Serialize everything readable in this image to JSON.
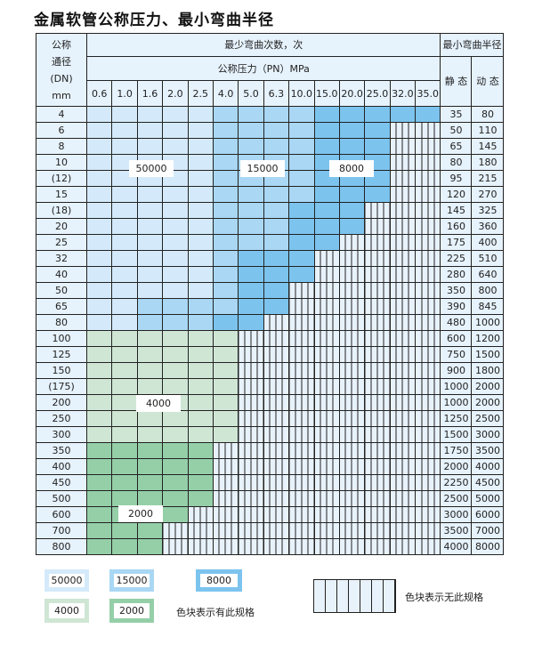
{
  "title": "金属软管公称压力、最小弯曲半径",
  "header": {
    "dn_label": [
      "公称",
      "通径",
      "(DN)",
      "mm"
    ],
    "bend_count_label": "最少弯曲次数，次",
    "pressure_label": "公称压力（PN）MPa",
    "radius_label": "最小弯曲半径",
    "static_label": "静 态",
    "dynamic_label": "动 态",
    "pressures": [
      "0.6",
      "1.0",
      "1.6",
      "2.0",
      "2.5",
      "4.0",
      "5.0",
      "6.3",
      "10.0",
      "15.0",
      "20.0",
      "25.0",
      "32.0",
      "35.0"
    ]
  },
  "rows": [
    {
      "dn": "4",
      "static": "35",
      "dynamic": "80",
      "cells": "LLLLLMMMMDDDDD"
    },
    {
      "dn": "6",
      "static": "50",
      "dynamic": "110",
      "cells": "LLLLLMMMMDDDXX"
    },
    {
      "dn": "8",
      "static": "65",
      "dynamic": "145",
      "cells": "LLLLLMMMMDDDXX"
    },
    {
      "dn": "10",
      "static": "80",
      "dynamic": "180",
      "cells": "LLLLLMMMMDDDXX"
    },
    {
      "dn": "(12)",
      "static": "95",
      "dynamic": "215",
      "cells": "LLLLLMMMMDDDXX"
    },
    {
      "dn": "15",
      "static": "120",
      "dynamic": "270",
      "cells": "LLLLLMMMMDDDXX"
    },
    {
      "dn": "(18)",
      "static": "145",
      "dynamic": "325",
      "cells": "LLLLLMMMDDDXXX"
    },
    {
      "dn": "20",
      "static": "160",
      "dynamic": "360",
      "cells": "LLLLLMMMDDDXXX"
    },
    {
      "dn": "25",
      "static": "175",
      "dynamic": "400",
      "cells": "LLLLLMMMDDXXXX"
    },
    {
      "dn": "32",
      "static": "225",
      "dynamic": "510",
      "cells": "LLLLLMDDDXXXXX"
    },
    {
      "dn": "40",
      "static": "280",
      "dynamic": "640",
      "cells": "LLLLLMDDDXXXXX"
    },
    {
      "dn": "50",
      "static": "350",
      "dynamic": "800",
      "cells": "LLLLLMDDXXXXXX"
    },
    {
      "dn": "65",
      "static": "390",
      "dynamic": "845",
      "cells": "LLMMMMDDXXXXXX"
    },
    {
      "dn": "80",
      "static": "480",
      "dynamic": "1000",
      "cells": "LLMMMDDXXXXXXX"
    },
    {
      "dn": "100",
      "static": "600",
      "dynamic": "1200",
      "cells": "ggggggXXXXXXXX"
    },
    {
      "dn": "125",
      "static": "750",
      "dynamic": "1500",
      "cells": "ggggggXXXXXXXX"
    },
    {
      "dn": "150",
      "static": "900",
      "dynamic": "1800",
      "cells": "ggggggXXXXXXXX"
    },
    {
      "dn": "(175)",
      "static": "1000",
      "dynamic": "2000",
      "cells": "ggggggXXXXXXXX"
    },
    {
      "dn": "200",
      "static": "1000",
      "dynamic": "2000",
      "cells": "ggggggXXXXXXXX"
    },
    {
      "dn": "250",
      "static": "1250",
      "dynamic": "2500",
      "cells": "ggggggXXXXXXXX"
    },
    {
      "dn": "300",
      "static": "1500",
      "dynamic": "3000",
      "cells": "ggggggXXXXXXXX"
    },
    {
      "dn": "350",
      "static": "1750",
      "dynamic": "3500",
      "cells": "GGGGGXXXXXXXXX"
    },
    {
      "dn": "400",
      "static": "2000",
      "dynamic": "4000",
      "cells": "GGGGGXXXXXXXXX"
    },
    {
      "dn": "450",
      "static": "2250",
      "dynamic": "4500",
      "cells": "GGGGGXXXXXXXXX"
    },
    {
      "dn": "500",
      "static": "2500",
      "dynamic": "5000",
      "cells": "GGGGGXXXXXXXXX"
    },
    {
      "dn": "600",
      "static": "3000",
      "dynamic": "6000",
      "cells": "GGGGXXXXXXXXXX"
    },
    {
      "dn": "700",
      "static": "3500",
      "dynamic": "7000",
      "cells": "GGGXXXXXXXXXXX"
    },
    {
      "dn": "800",
      "static": "4000",
      "dynamic": "8000",
      "cells": "GGGXXXXXXXXXXX"
    }
  ],
  "region_labels": {
    "l50000": "50000",
    "l15000": "15000",
    "l8000": "8000",
    "l4000": "4000",
    "l2000": "2000"
  },
  "legend": {
    "items": [
      {
        "label": "50000",
        "color": "#d4eafa"
      },
      {
        "label": "15000",
        "color": "#a9d7f4"
      },
      {
        "label": "8000",
        "color": "#7cc4ee"
      },
      {
        "label": "4000",
        "color": "#cfe6d5"
      },
      {
        "label": "2000",
        "color": "#95cfa8"
      }
    ],
    "has_spec_text": "色块表示有此规格",
    "no_spec_text": "色块表示无此规格"
  }
}
